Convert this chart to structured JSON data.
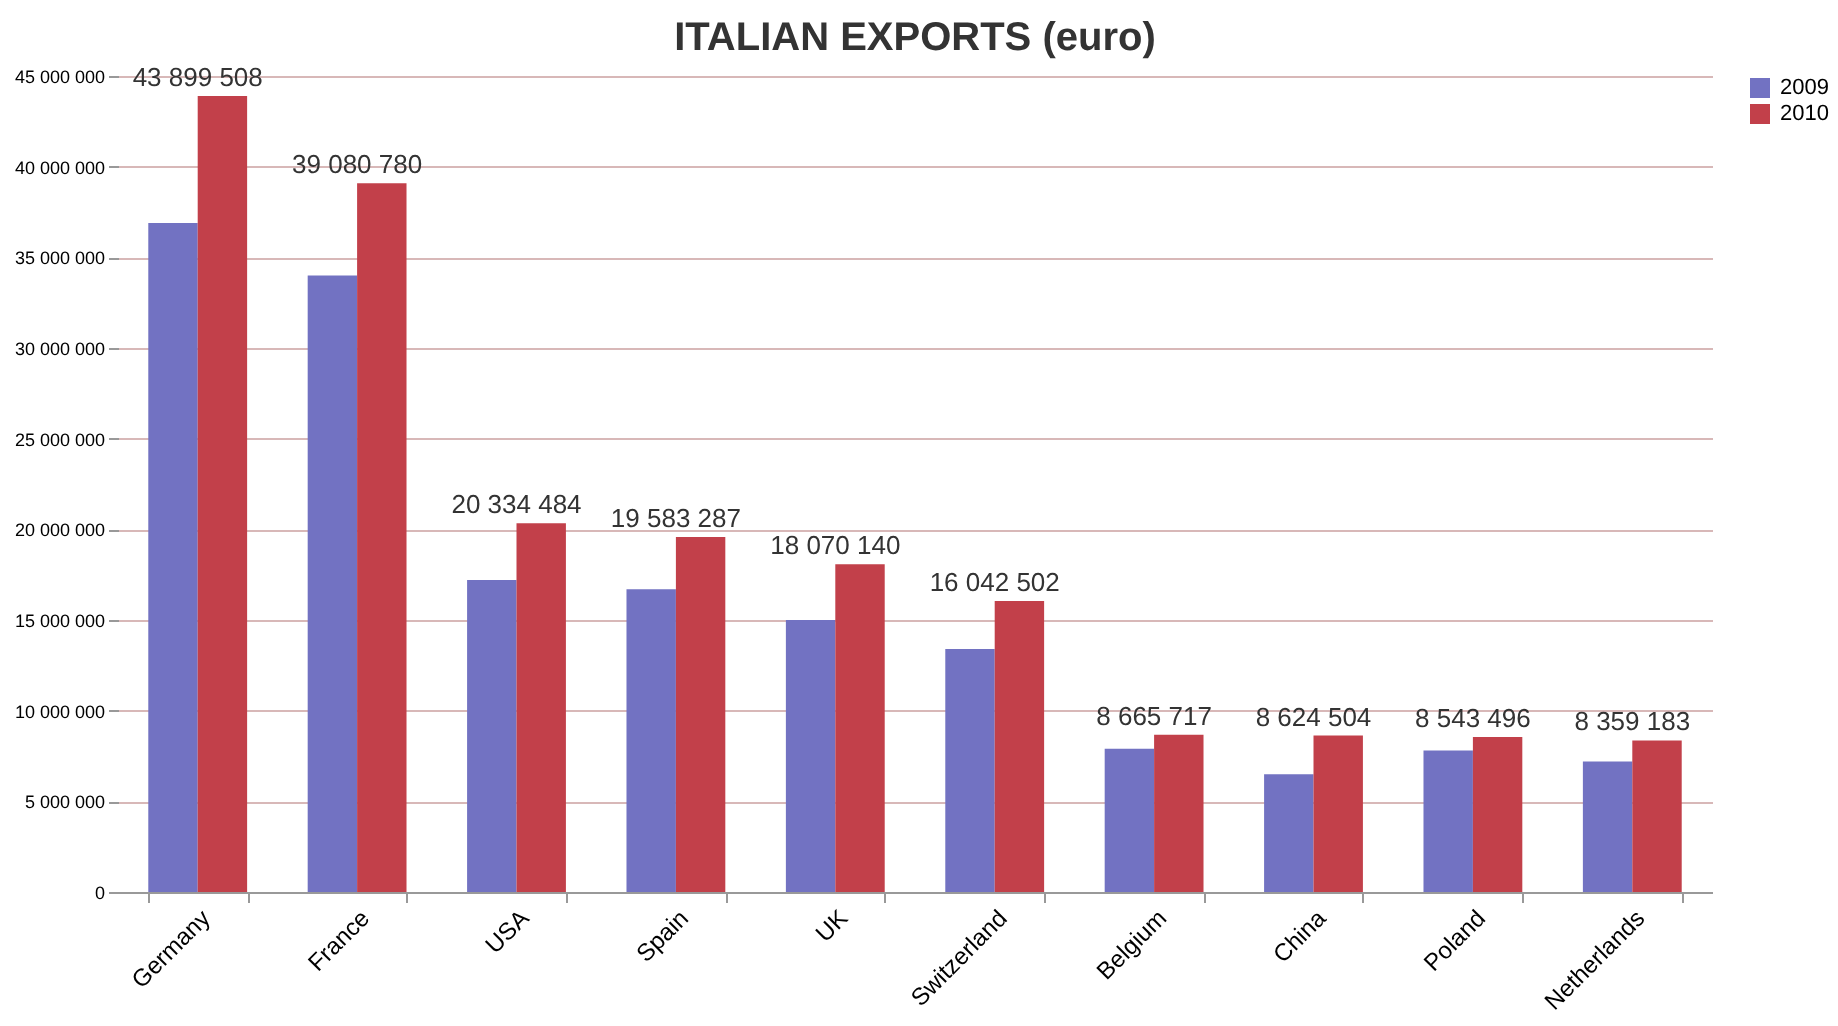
{
  "chart_data": {
    "type": "bar",
    "title": "ITALIAN EXPORTS (euro)",
    "categories": [
      "Germany",
      "France",
      "USA",
      "Spain",
      "UK",
      "Switzerland",
      "Belgium",
      "China",
      "Poland",
      "Netherlands"
    ],
    "series": [
      {
        "name": "2009",
        "color": "#7272c2",
        "values": [
          36900000,
          34000000,
          17200000,
          16700000,
          15000000,
          13400000,
          7900000,
          6500000,
          7800000,
          7200000
        ]
      },
      {
        "name": "2010",
        "color": "#c2404a",
        "values": [
          43899508,
          39080780,
          20334484,
          19583287,
          18070140,
          16042502,
          8665717,
          8624504,
          8543496,
          8359183
        ],
        "value_labels": [
          "43 899 508",
          "39 080 780",
          "20 334 484",
          "19 583 287",
          "18 070 140",
          "16 042 502",
          "8 665 717",
          "8 624 504",
          "8 543 496",
          "8 359 183"
        ]
      }
    ],
    "ylim": [
      0,
      45000000
    ],
    "yticks": [
      {
        "value": 0,
        "label": "0"
      },
      {
        "value": 5000000,
        "label": "5 000 000"
      },
      {
        "value": 10000000,
        "label": "10 000 000"
      },
      {
        "value": 15000000,
        "label": "15 000 000"
      },
      {
        "value": 20000000,
        "label": "20 000 000"
      },
      {
        "value": 25000000,
        "label": "25 000 000"
      },
      {
        "value": 30000000,
        "label": "30 000 000"
      },
      {
        "value": 35000000,
        "label": "35 000 000"
      },
      {
        "value": 40000000,
        "label": "40 000 000"
      },
      {
        "value": 45000000,
        "label": "45 000 000"
      }
    ],
    "grid": "y",
    "legend": "right"
  }
}
